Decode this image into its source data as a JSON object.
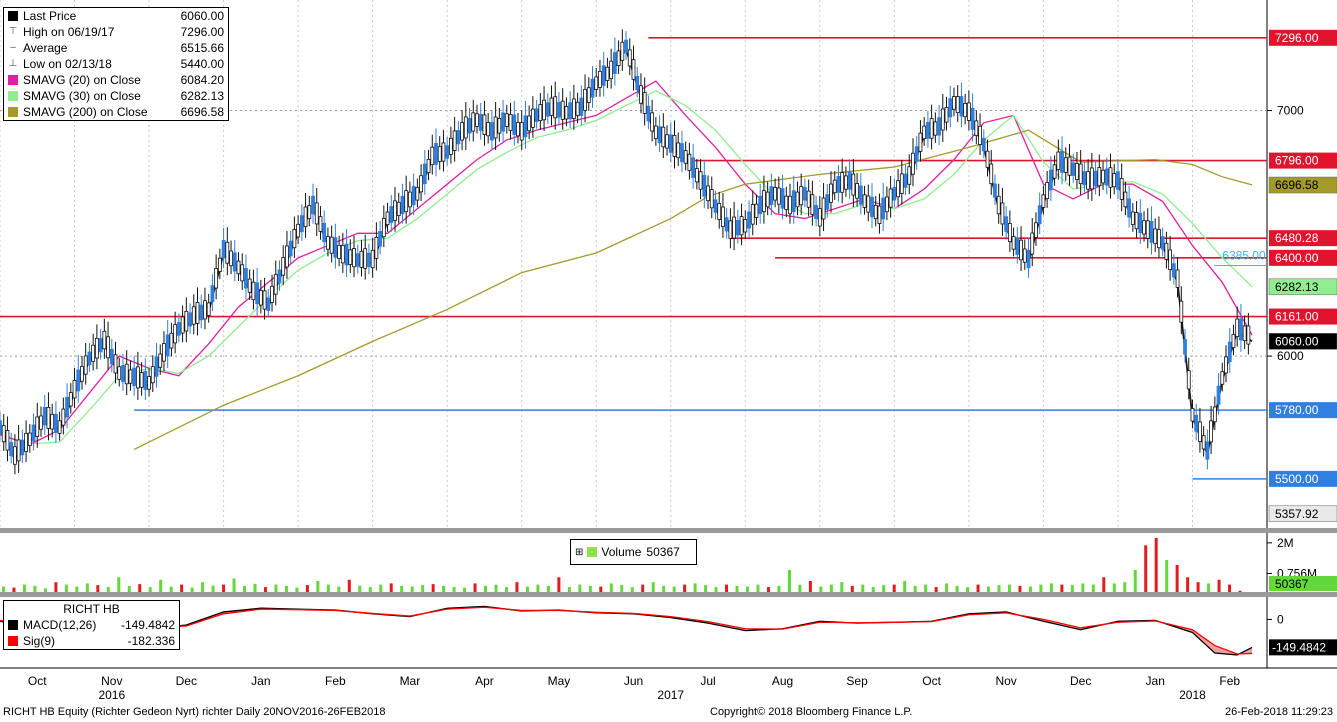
{
  "main_legend": {
    "rows": [
      {
        "label": "Last Price",
        "value": "6060.00",
        "swatch": "#000000"
      },
      {
        "label": "High on 06/19/17",
        "value": "7296.00",
        "swatch": "none",
        "glyph": "⊤"
      },
      {
        "label": "Average",
        "value": "6515.66",
        "swatch": "none",
        "glyph": "–"
      },
      {
        "label": "Low on 02/13/18",
        "value": "5440.00",
        "swatch": "none",
        "glyph": "⊥"
      },
      {
        "label": "SMAVG (20)  on Close",
        "value": "6084.20",
        "swatch": "#e020a0"
      },
      {
        "label": "SMAVG (30)  on Close",
        "value": "6282.13",
        "swatch": "#90ee90"
      },
      {
        "label": "SMAVG (200)  on Close",
        "value": "6696.58",
        "swatch": "#a39a2a"
      }
    ]
  },
  "volume_legend": {
    "label": "Volume",
    "value": "50367",
    "expand": "⊞"
  },
  "macd_legend": {
    "title": "RICHT HB",
    "rows": [
      {
        "label": "MACD(12,26)",
        "value": "-149.4842",
        "swatch": "#000000"
      },
      {
        "label": "Sig(9)",
        "value": "-182.336",
        "swatch": "#ff0000"
      }
    ]
  },
  "footer": {
    "left": "RICHT HB Equity (Richter Gedeon Nyrt) richter  Daily 20NOV2016-26FEB2018",
    "center": "Copyright© 2018 Bloomberg Finance L.P.",
    "right": "26-Feb-2018 11:29:23"
  },
  "chart_data": [
    {
      "type": "line",
      "panel": "price",
      "y_ticks": [
        6000,
        7000
      ],
      "ylim": [
        5300,
        7450
      ],
      "grid": true,
      "x_months": [
        {
          "label": "Oct",
          "pos": 0.5
        },
        {
          "label": "Nov",
          "pos": 1.5
        },
        {
          "label": "Dec",
          "pos": 2.5
        },
        {
          "label": "Jan",
          "pos": 3.5
        },
        {
          "label": "Feb",
          "pos": 4.5
        },
        {
          "label": "Mar",
          "pos": 5.5
        },
        {
          "label": "Apr",
          "pos": 6.5
        },
        {
          "label": "May",
          "pos": 7.5
        },
        {
          "label": "Jun",
          "pos": 8.5
        },
        {
          "label": "Jul",
          "pos": 9.5
        },
        {
          "label": "Aug",
          "pos": 10.5
        },
        {
          "label": "Sep",
          "pos": 11.5
        },
        {
          "label": "Oct",
          "pos": 12.5
        },
        {
          "label": "Nov",
          "pos": 13.5
        },
        {
          "label": "Dec",
          "pos": 14.5
        },
        {
          "label": "Jan",
          "pos": 15.5
        },
        {
          "label": "Feb",
          "pos": 16.5
        }
      ],
      "x_years": [
        {
          "label": "2016",
          "pos": 1.5
        },
        {
          "label": "2017",
          "pos": 9.0
        },
        {
          "label": "2018",
          "pos": 16.0
        }
      ],
      "x_range": [
        0,
        17
      ],
      "series": [
        {
          "name": "Last Price",
          "color": "#1a1a1a",
          "x": [
            0,
            0.2,
            0.4,
            0.6,
            0.8,
            1.0,
            1.2,
            1.4,
            1.6,
            1.8,
            2.0,
            2.2,
            2.4,
            2.6,
            2.8,
            3.0,
            3.2,
            3.4,
            3.6,
            3.8,
            4.0,
            4.2,
            4.4,
            4.6,
            4.8,
            5.0,
            5.2,
            5.4,
            5.6,
            5.8,
            6.0,
            6.2,
            6.4,
            6.6,
            6.8,
            7.0,
            7.2,
            7.4,
            7.6,
            7.8,
            8.0,
            8.2,
            8.4,
            8.6,
            8.8,
            9.0,
            9.2,
            9.4,
            9.6,
            9.8,
            10.0,
            10.2,
            10.4,
            10.6,
            10.8,
            11.0,
            11.2,
            11.4,
            11.6,
            11.8,
            12.0,
            12.2,
            12.4,
            12.6,
            12.8,
            13.0,
            13.2,
            13.4,
            13.6,
            13.8,
            14.0,
            14.2,
            14.4,
            14.6,
            14.8,
            15.0,
            15.2,
            15.4,
            15.6,
            15.8,
            16.0,
            16.2,
            16.4,
            16.6,
            16.8
          ],
          "values": [
            5700,
            5580,
            5650,
            5740,
            5700,
            5850,
            5980,
            6050,
            5920,
            5900,
            5880,
            6000,
            6100,
            6150,
            6180,
            6420,
            6350,
            6250,
            6200,
            6350,
            6500,
            6600,
            6450,
            6400,
            6380,
            6380,
            6550,
            6600,
            6650,
            6800,
            6820,
            6900,
            6950,
            6900,
            6950,
            6900,
            6970,
            7000,
            6980,
            7000,
            7100,
            7150,
            7250,
            7050,
            6900,
            6850,
            6800,
            6700,
            6600,
            6500,
            6520,
            6600,
            6650,
            6600,
            6650,
            6550,
            6680,
            6700,
            6620,
            6560,
            6650,
            6720,
            6900,
            6920,
            7020,
            6980,
            6850,
            6600,
            6450,
            6380,
            6620,
            6780,
            6750,
            6700,
            6720,
            6700,
            6550,
            6500,
            6450,
            6300,
            5750,
            5600,
            5900,
            6100,
            6060
          ]
        },
        {
          "name": "SMAVG (20) on Close",
          "color": "#e020a0",
          "x": [
            0,
            0.4,
            0.8,
            1.2,
            1.6,
            2.0,
            2.4,
            2.8,
            3.2,
            3.6,
            4.0,
            4.4,
            4.8,
            5.2,
            5.6,
            6.0,
            6.4,
            6.8,
            7.2,
            7.6,
            8.0,
            8.4,
            8.8,
            9.2,
            9.6,
            10.0,
            10.4,
            10.8,
            11.2,
            11.6,
            12.0,
            12.4,
            12.8,
            13.2,
            13.6,
            14.0,
            14.4,
            14.8,
            15.2,
            15.6,
            16.0,
            16.4,
            16.8
          ],
          "values": [
            5680,
            5640,
            5700,
            5850,
            6000,
            5950,
            5920,
            6050,
            6200,
            6300,
            6400,
            6450,
            6500,
            6500,
            6600,
            6700,
            6800,
            6880,
            6920,
            6950,
            6980,
            7050,
            7120,
            6980,
            6850,
            6700,
            6580,
            6560,
            6600,
            6640,
            6600,
            6680,
            6800,
            6950,
            6980,
            6700,
            6640,
            6700,
            6700,
            6630,
            6450,
            6300,
            6085
          ]
        },
        {
          "name": "SMAVG (30) on Close",
          "color": "#90ee90",
          "x": [
            0.3,
            0.8,
            1.2,
            1.6,
            2.0,
            2.4,
            2.8,
            3.2,
            3.6,
            4.0,
            4.4,
            4.8,
            5.2,
            5.6,
            6.0,
            6.4,
            6.8,
            7.2,
            7.6,
            8.0,
            8.4,
            8.8,
            9.2,
            9.6,
            10.0,
            10.4,
            10.8,
            11.2,
            11.6,
            12.0,
            12.4,
            12.8,
            13.2,
            13.6,
            14.0,
            14.4,
            14.8,
            15.2,
            15.6,
            16.0,
            16.4,
            16.8
          ],
          "values": [
            5640,
            5650,
            5780,
            5920,
            5950,
            5930,
            6000,
            6120,
            6240,
            6350,
            6420,
            6470,
            6480,
            6560,
            6660,
            6760,
            6830,
            6890,
            6920,
            6960,
            7020,
            7080,
            7020,
            6920,
            6780,
            6650,
            6580,
            6580,
            6620,
            6600,
            6640,
            6740,
            6880,
            6980,
            6790,
            6680,
            6700,
            6710,
            6660,
            6540,
            6400,
            6282
          ]
        },
        {
          "name": "SMAVG (200) on Close",
          "color": "#a39a2a",
          "x": [
            1.8,
            3.0,
            4.0,
            5.0,
            6.0,
            7.0,
            8.0,
            9.0,
            9.5,
            10.0,
            11.0,
            12.0,
            13.0,
            13.8,
            14.5,
            15.5,
            16.0,
            16.4,
            16.8
          ],
          "values": [
            5620,
            5800,
            5920,
            6060,
            6190,
            6340,
            6420,
            6560,
            6650,
            6700,
            6740,
            6770,
            6850,
            6920,
            6790,
            6800,
            6780,
            6730,
            6697
          ]
        }
      ],
      "price_levels": [
        {
          "value": 7296,
          "label": "7296.00",
          "color": "#e2142d",
          "x_start": 8.7
        },
        {
          "value": 6796,
          "label": "6796.00",
          "color": "#e2142d",
          "x_start": 9.3
        },
        {
          "value": 6480.28,
          "label": "6480.28",
          "color": "#e2142d",
          "x_start": 9.8
        },
        {
          "value": 6400,
          "label": "6400.00",
          "color": "#e2142d",
          "x_start": 10.4
        },
        {
          "value": 6161,
          "label": "6161.00",
          "color": "#e2142d",
          "x_start": 0
        },
        {
          "value": 5780,
          "label": "5780.00",
          "color": "#2f7fe0",
          "x_start": 1.8
        },
        {
          "value": 5500,
          "label": "5500.00",
          "color": "#2f7fe0",
          "x_start": 16.0
        }
      ],
      "side_tags": [
        {
          "value": 6696.58,
          "label": "6696.58",
          "bg": "#a39a2a",
          "fg": "#000000"
        },
        {
          "value": 6282.13,
          "label": "6282.13",
          "bg": "#90ee90",
          "fg": "#000000"
        },
        {
          "value": 6060,
          "label": "6060.00",
          "bg": "#000000",
          "fg": "#ffffff"
        },
        {
          "value": 5357.92,
          "label": "5357.92",
          "bg": "#e9e9e9",
          "fg": "#000000"
        }
      ],
      "annotation": {
        "label": "6385.00",
        "value": 6385,
        "x": 16.4,
        "color": "#38b8e8"
      }
    },
    {
      "type": "bar",
      "panel": "volume",
      "y_ticks": [
        {
          "value": 2.0,
          "label": "2M"
        },
        {
          "value": 0.756,
          "label": "0.756M"
        }
      ],
      "ylim": [
        0,
        2.4
      ],
      "side_tag": {
        "label": "50367",
        "bg": "#62d83a"
      },
      "x_range": [
        0,
        17
      ],
      "values": [
        0.22,
        0.18,
        0.3,
        0.25,
        0.15,
        0.4,
        0.3,
        0.22,
        0.35,
        0.28,
        0.2,
        0.6,
        0.25,
        0.32,
        0.2,
        0.5,
        0.22,
        0.3,
        0.18,
        0.4,
        0.26,
        0.3,
        0.55,
        0.25,
        0.33,
        0.2,
        0.3,
        0.25,
        0.18,
        0.28,
        0.45,
        0.3,
        0.22,
        0.5,
        0.26,
        0.2,
        0.3,
        0.35,
        0.25,
        0.22,
        0.28,
        0.32,
        0.25,
        0.2,
        0.18,
        0.35,
        0.25,
        0.3,
        0.2,
        0.4,
        0.22,
        0.3,
        0.25,
        0.6,
        0.2,
        0.3,
        0.25,
        0.22,
        0.35,
        0.28,
        0.2,
        0.3,
        0.4,
        0.25,
        0.22,
        0.3,
        0.35,
        0.28,
        0.2,
        0.3,
        0.25,
        0.22,
        0.3,
        0.2,
        0.25,
        0.9,
        0.3,
        0.45,
        0.22,
        0.3,
        0.4,
        0.25,
        0.3,
        0.2,
        0.28,
        0.3,
        0.45,
        0.25,
        0.3,
        0.2,
        0.35,
        0.25,
        0.2,
        0.3,
        0.22,
        0.28,
        0.3,
        0.25,
        0.22,
        0.3,
        0.35,
        0.3,
        0.28,
        0.35,
        0.3,
        0.6,
        0.35,
        0.4,
        0.9,
        1.9,
        2.2,
        1.3,
        1.1,
        0.6,
        0.4,
        0.35,
        0.5,
        0.3,
        0.05
      ]
    },
    {
      "type": "line",
      "panel": "macd",
      "y_ticks": [
        {
          "value": 0,
          "label": "0"
        }
      ],
      "ylim": [
        -260,
        120
      ],
      "side_tag": {
        "label": "-149.4842",
        "bg": "#000000",
        "fg": "#ffffff"
      },
      "x_range": [
        0,
        17
      ],
      "series": [
        {
          "name": "MACD(12,26)",
          "color": "#000000",
          "x": [
            0,
            0.5,
            1.0,
            1.5,
            2.0,
            2.5,
            3.0,
            3.5,
            4.0,
            4.5,
            5.0,
            5.5,
            6.0,
            6.5,
            7.0,
            7.5,
            8.0,
            8.5,
            9.0,
            9.5,
            10.0,
            10.5,
            11.0,
            11.5,
            12.0,
            12.5,
            13.0,
            13.5,
            14.0,
            14.5,
            15.0,
            15.5,
            16.0,
            16.3,
            16.6,
            16.8
          ],
          "values": [
            -10,
            -40,
            -60,
            -20,
            -50,
            -30,
            40,
            60,
            55,
            50,
            30,
            15,
            60,
            70,
            45,
            50,
            35,
            30,
            10,
            -20,
            -60,
            -50,
            -10,
            -20,
            -15,
            -10,
            30,
            40,
            -10,
            -55,
            -10,
            -5,
            -70,
            -180,
            -190,
            -150
          ]
        },
        {
          "name": "Sig(9)",
          "color": "#ff0000",
          "x": [
            0,
            0.5,
            1.0,
            1.5,
            2.0,
            2.5,
            3.0,
            3.5,
            4.0,
            4.5,
            5.0,
            5.5,
            6.0,
            6.5,
            7.0,
            7.5,
            8.0,
            8.5,
            9.0,
            9.5,
            10.0,
            10.5,
            11.0,
            11.5,
            12.0,
            12.5,
            13.0,
            13.5,
            14.0,
            14.5,
            15.0,
            15.5,
            16.0,
            16.3,
            16.6,
            16.8
          ],
          "values": [
            -5,
            -30,
            -50,
            -25,
            -45,
            -35,
            30,
            55,
            52,
            48,
            32,
            18,
            55,
            65,
            48,
            48,
            38,
            32,
            15,
            -12,
            -50,
            -52,
            -15,
            -18,
            -16,
            -12,
            25,
            35,
            0,
            -45,
            -15,
            -8,
            -55,
            -140,
            -185,
            -182
          ]
        }
      ]
    }
  ]
}
